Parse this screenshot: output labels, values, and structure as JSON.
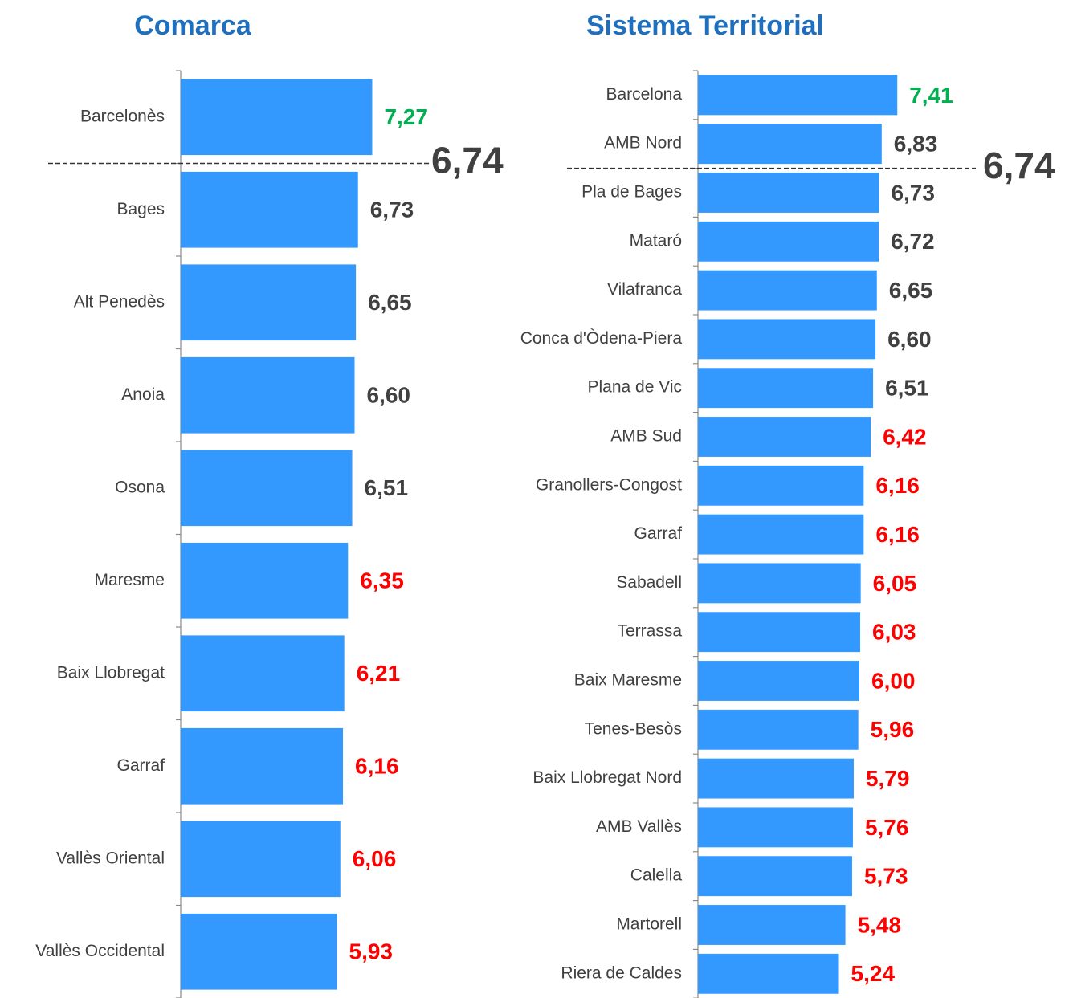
{
  "chart_data": [
    {
      "type": "bar",
      "orientation": "horizontal",
      "title": "Comarca",
      "categories": [
        "Barcelonès",
        "Bages",
        "Alt Penedès",
        "Anoia",
        "Osona",
        "Maresme",
        "Baix Llobregat",
        "Garraf",
        "Vallès Oriental",
        "Vallès Occidental"
      ],
      "values": [
        7.27,
        6.73,
        6.65,
        6.6,
        6.51,
        6.35,
        6.21,
        6.16,
        6.06,
        5.93
      ],
      "value_labels": [
        "7,27",
        "6,73",
        "6,65",
        "6,60",
        "6,51",
        "6,35",
        "6,21",
        "6,16",
        "6,06",
        "5,93"
      ],
      "label_colors": [
        "#00b050",
        "#404040",
        "#404040",
        "#404040",
        "#404040",
        "#ff0000",
        "#ff0000",
        "#ff0000",
        "#ff0000",
        "#ff0000"
      ],
      "color": "#3399ff",
      "xlim": [
        0,
        10
      ],
      "reference": {
        "value": 6.74,
        "label": "6,74"
      }
    },
    {
      "type": "bar",
      "orientation": "horizontal",
      "title": "Sistema Territorial",
      "categories": [
        "Barcelona",
        "AMB Nord",
        "Pla de Bages",
        "Mataró",
        "Vilafranca",
        "Conca d'Òdena-Piera",
        "Plana de Vic",
        "AMB Sud",
        "Granollers-Congost",
        "Garraf",
        "Sabadell",
        "Terrassa",
        "Baix Maresme",
        "Tenes-Besòs",
        "Baix Llobregat Nord",
        "AMB Vallès",
        "Calella",
        "Martorell",
        "Riera de Caldes"
      ],
      "values": [
        7.41,
        6.83,
        6.73,
        6.72,
        6.65,
        6.6,
        6.51,
        6.42,
        6.16,
        6.16,
        6.05,
        6.03,
        6.0,
        5.96,
        5.79,
        5.76,
        5.73,
        5.48,
        5.24
      ],
      "value_labels": [
        "7,41",
        "6,83",
        "6,73",
        "6,72",
        "6,65",
        "6,60",
        "6,51",
        "6,42",
        "6,16",
        "6,16",
        "6,05",
        "6,03",
        "6,00",
        "5,96",
        "5,79",
        "5,76",
        "5,73",
        "5,48",
        "5,24"
      ],
      "label_colors": [
        "#00b050",
        "#404040",
        "#404040",
        "#404040",
        "#404040",
        "#404040",
        "#404040",
        "#ff0000",
        "#ff0000",
        "#ff0000",
        "#ff0000",
        "#ff0000",
        "#ff0000",
        "#ff0000",
        "#ff0000",
        "#ff0000",
        "#ff0000",
        "#ff0000",
        "#ff0000"
      ],
      "color": "#3399ff",
      "xlim": [
        0,
        10
      ],
      "reference": {
        "value": 6.74,
        "label": "6,74"
      }
    }
  ]
}
